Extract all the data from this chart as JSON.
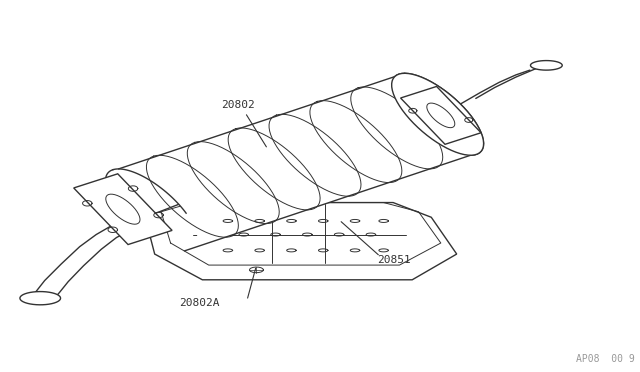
{
  "background_color": "#ffffff",
  "border_color": "#cccccc",
  "line_color": "#333333",
  "label_color": "#333333",
  "figure_width": 6.4,
  "figure_height": 3.72,
  "dpi": 100,
  "watermark_text": "AP08  00 9",
  "watermark_fontsize": 7,
  "label_20802": "20802",
  "label_20851": "20851",
  "label_20802A": "20802A"
}
